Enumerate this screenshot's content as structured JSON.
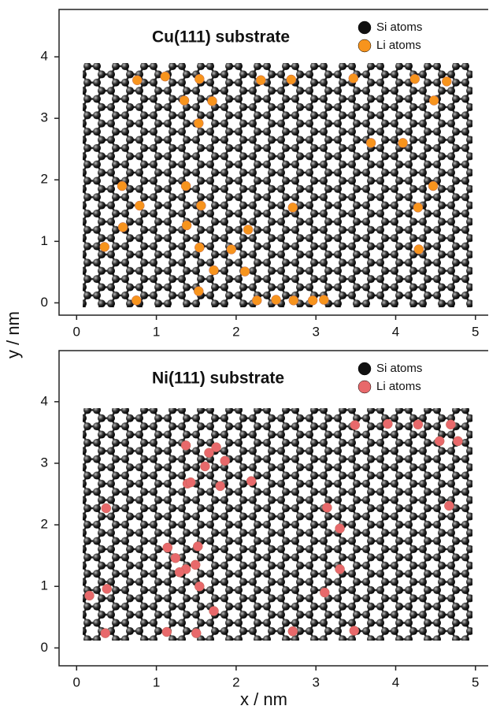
{
  "chart_data": [
    {
      "type": "scatter",
      "title": "Cu(111) substrate",
      "ylabel": "y / nm",
      "xlim": [
        -0.22,
        5.16
      ],
      "ylim": [
        -0.2,
        4.77
      ],
      "xticks": [
        0,
        1,
        2,
        3,
        4,
        5
      ],
      "yticks": [
        0,
        1,
        2,
        3,
        4
      ],
      "series": [
        {
          "name": "Si atoms",
          "color": "#111111"
        },
        {
          "name": "Li atoms",
          "color": "#f7941d",
          "x": [
            0.76,
            1.11,
            1.54,
            2.31,
            2.69,
            3.47,
            4.24,
            4.64,
            1.35,
            1.7,
            4.48,
            1.53,
            3.69,
            4.09,
            0.57,
            1.37,
            4.47,
            0.79,
            1.56,
            2.71,
            4.28,
            0.58,
            1.38,
            2.15,
            0.35,
            1.54,
            1.94,
            4.29,
            1.72,
            2.11,
            1.53,
            0.75,
            2.26,
            2.5,
            2.72,
            2.96,
            3.1
          ],
          "y": [
            3.62,
            3.68,
            3.64,
            3.62,
            3.63,
            3.65,
            3.64,
            3.6,
            3.29,
            3.28,
            3.29,
            2.92,
            2.6,
            2.6,
            1.9,
            1.9,
            1.9,
            1.58,
            1.58,
            1.55,
            1.55,
            1.23,
            1.26,
            1.19,
            0.91,
            0.9,
            0.87,
            0.87,
            0.53,
            0.51,
            0.19,
            0.04,
            0.04,
            0.05,
            0.04,
            0.04,
            0.05
          ]
        }
      ]
    },
    {
      "type": "scatter",
      "title": "Ni(111) substrate",
      "xlabel": "x / nm",
      "xlim": [
        -0.22,
        5.16
      ],
      "ylim": [
        -0.29,
        4.83
      ],
      "xticks": [
        0,
        1,
        2,
        3,
        4,
        5
      ],
      "yticks": [
        0,
        1,
        2,
        3,
        4
      ],
      "series": [
        {
          "name": "Si atoms",
          "color": "#111111"
        },
        {
          "name": "Li atoms",
          "color": "#e8696b",
          "x": [
            3.49,
            3.9,
            4.28,
            4.69,
            4.55,
            4.78,
            1.37,
            1.75,
            1.66,
            1.61,
            1.86,
            1.39,
            1.43,
            1.8,
            2.19,
            0.37,
            3.14,
            4.67,
            3.3,
            1.14,
            1.52,
            1.24,
            1.49,
            1.37,
            1.29,
            3.3,
            1.54,
            0.38,
            3.11,
            0.16,
            1.72,
            0.36,
            1.13,
            1.5,
            2.71,
            3.48
          ],
          "y": [
            3.62,
            3.64,
            3.63,
            3.63,
            3.36,
            3.36,
            3.29,
            3.26,
            3.17,
            2.95,
            3.04,
            2.67,
            2.69,
            2.63,
            2.71,
            2.27,
            2.28,
            2.31,
            1.94,
            1.63,
            1.65,
            1.46,
            1.35,
            1.28,
            1.23,
            1.28,
            1.0,
            0.96,
            0.9,
            0.85,
            0.6,
            0.24,
            0.26,
            0.24,
            0.27,
            0.28
          ]
        }
      ]
    }
  ]
}
